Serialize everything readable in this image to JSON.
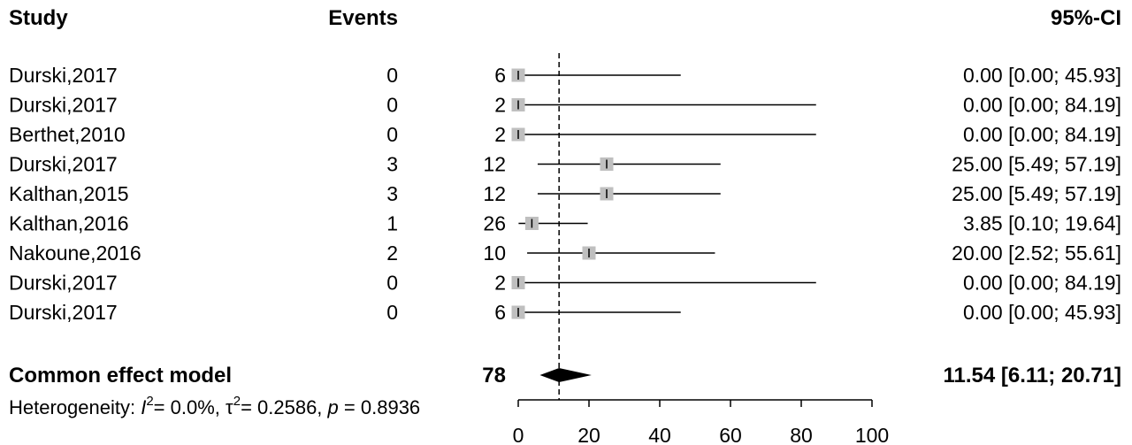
{
  "chart_data": {
    "type": "forest",
    "headers": {
      "study": "Study",
      "events": "Events",
      "ci": "95%-CI"
    },
    "studies": [
      {
        "study": "Durski,2017",
        "events": 0,
        "total": 6,
        "estimate": 0.0,
        "ci": "0.00 [0.00; 45.93]",
        "lower": 0.0,
        "upper": 45.93
      },
      {
        "study": "Durski,2017",
        "events": 0,
        "total": 2,
        "estimate": 0.0,
        "ci": "0.00 [0.00; 84.19]",
        "lower": 0.0,
        "upper": 84.19
      },
      {
        "study": "Berthet,2010",
        "events": 0,
        "total": 2,
        "estimate": 0.0,
        "ci": "0.00 [0.00; 84.19]",
        "lower": 0.0,
        "upper": 84.19
      },
      {
        "study": "Durski,2017",
        "events": 3,
        "total": 12,
        "estimate": 25.0,
        "ci": "25.00 [5.49; 57.19]",
        "lower": 5.49,
        "upper": 57.19
      },
      {
        "study": "Kalthan,2015",
        "events": 3,
        "total": 12,
        "estimate": 25.0,
        "ci": "25.00 [5.49; 57.19]",
        "lower": 5.49,
        "upper": 57.19
      },
      {
        "study": "Kalthan,2016",
        "events": 1,
        "total": 26,
        "estimate": 3.85,
        "ci": "3.85 [0.10; 19.64]",
        "lower": 0.1,
        "upper": 19.64
      },
      {
        "study": "Nakoune,2016",
        "events": 2,
        "total": 10,
        "estimate": 20.0,
        "ci": "20.00 [2.52; 55.61]",
        "lower": 2.52,
        "upper": 55.61
      },
      {
        "study": "Durski,2017",
        "events": 0,
        "total": 2,
        "estimate": 0.0,
        "ci": "0.00 [0.00; 84.19]",
        "lower": 0.0,
        "upper": 84.19
      },
      {
        "study": "Durski,2017",
        "events": 0,
        "total": 6,
        "estimate": 0.0,
        "ci": "0.00 [0.00; 45.93]",
        "lower": 0.0,
        "upper": 45.93
      }
    ],
    "pooled": {
      "label": "Common effect model",
      "total": 78,
      "estimate": 11.54,
      "lower": 6.11,
      "upper": 20.71,
      "ci": "11.54 [6.11; 20.71]"
    },
    "heterogeneity": {
      "prefix": "Heterogeneity: ",
      "i2": "= 0.0%, ",
      "tau2": "= 0.2586, ",
      "p": "= 0.8936"
    },
    "xaxis": {
      "ticks": [
        0,
        20,
        40,
        60,
        80,
        100
      ],
      "range": [
        0,
        100
      ]
    },
    "marker_color": "#bfbfbf"
  }
}
